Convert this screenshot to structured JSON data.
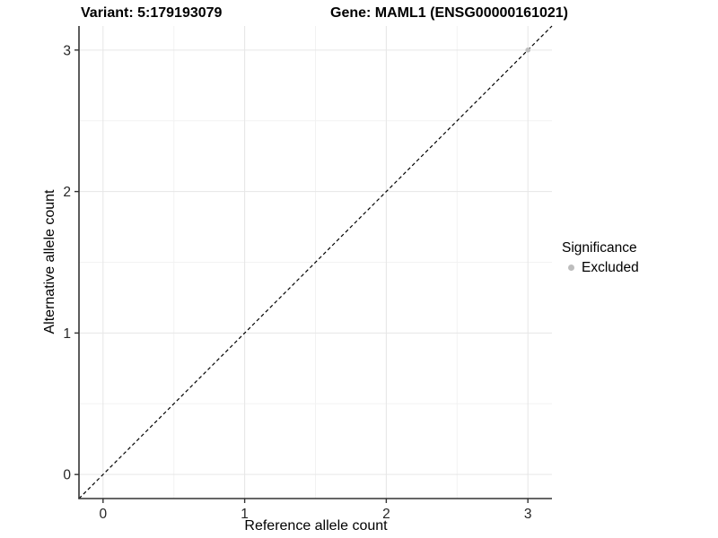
{
  "chart_data": {
    "type": "scatter",
    "title_left": "Variant: 5:179193079",
    "title_right": "Gene: MAML1 (ENSG00000161021)",
    "xlabel": "Reference allele count",
    "ylabel": "Alternative allele count",
    "xlim": [
      -0.17,
      3.17
    ],
    "ylim": [
      -0.17,
      3.17
    ],
    "x_ticks": [
      0,
      1,
      2,
      3
    ],
    "y_ticks": [
      0,
      1,
      2,
      3
    ],
    "x_minor_ticks": [
      0.5,
      1.5,
      2.5
    ],
    "y_minor_ticks": [
      0.5,
      1.5,
      2.5
    ],
    "grid": true,
    "identity_line": {
      "slope": 1,
      "intercept": 0,
      "style": "dashed",
      "color": "#000000"
    },
    "series": [
      {
        "name": "Excluded",
        "color": "#bdbdbd",
        "points": [
          {
            "x": 3,
            "y": 3
          }
        ]
      }
    ],
    "legend": {
      "title": "Significance",
      "position": "right",
      "items": [
        {
          "label": "Excluded",
          "color": "#bdbdbd"
        }
      ]
    },
    "colors": {
      "background": "#ffffff",
      "grid_major": "#e6e6e6",
      "grid_minor": "#f2f2f2",
      "axis_line": "#333333",
      "tick_mark": "#333333",
      "tick_label": "#262626",
      "dashed_line": "#000000",
      "excluded_point": "#bdbdbd"
    }
  }
}
